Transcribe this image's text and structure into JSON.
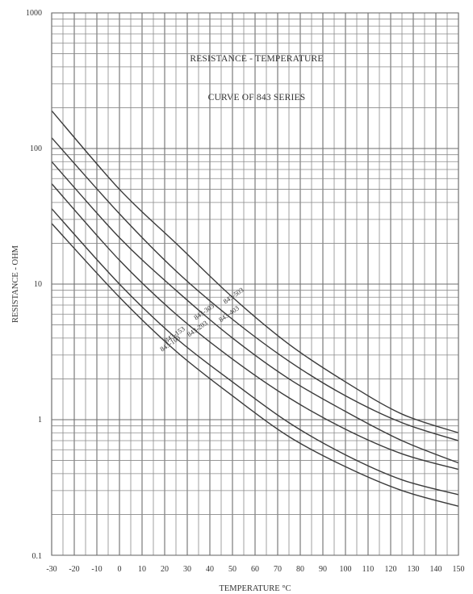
{
  "chart_data": {
    "type": "line",
    "title": "RESISTANCE - TEMPERATURE",
    "subtitle": "CURVE OF 843 SERIES",
    "xlabel": "TEMPERATURE °C",
    "ylabel": "RESISTANCE - OHM",
    "y_scale": "log",
    "xlim": [
      -30,
      150
    ],
    "ylim": [
      0.1,
      1000
    ],
    "x_ticks": [
      "-30",
      "-20",
      "-10",
      "0",
      "10",
      "20",
      "30",
      "40",
      "50",
      "60",
      "70",
      "80",
      "90",
      "100",
      "110",
      "120",
      "130",
      "140",
      "150"
    ],
    "y_ticks": [
      "1000",
      "100",
      "10",
      "1",
      "0.1"
    ],
    "grid": true,
    "series": [
      {
        "name": "843-503",
        "x": [
          -30,
          0,
          25,
          50,
          75,
          100,
          125,
          150
        ],
        "y": [
          190,
          50,
          20,
          8,
          3.6,
          1.9,
          1.1,
          0.8
        ]
      },
      {
        "name": "843-403",
        "x": [
          -30,
          0,
          25,
          50,
          75,
          100,
          125,
          150
        ],
        "y": [
          120,
          33,
          12.5,
          5.5,
          2.7,
          1.5,
          0.95,
          0.7
        ]
      },
      {
        "name": "843-303",
        "x": [
          -30,
          0,
          25,
          50,
          75,
          100,
          125,
          150
        ],
        "y": [
          80,
          22,
          9,
          4,
          2,
          1.15,
          0.7,
          0.48
        ]
      },
      {
        "name": "843-203",
        "x": [
          -30,
          0,
          25,
          50,
          75,
          100,
          125,
          150
        ],
        "y": [
          55,
          15,
          6,
          2.8,
          1.45,
          0.85,
          0.56,
          0.43
        ]
      },
      {
        "name": "843-153",
        "x": [
          -30,
          0,
          25,
          50,
          75,
          100,
          125,
          150
        ],
        "y": [
          36,
          10,
          4,
          1.9,
          0.95,
          0.55,
          0.36,
          0.28
        ]
      },
      {
        "name": "843-103",
        "x": [
          -30,
          0,
          25,
          50,
          75,
          100,
          125,
          150
        ],
        "y": [
          28,
          8,
          3.2,
          1.5,
          0.75,
          0.45,
          0.3,
          0.23
        ]
      }
    ]
  }
}
